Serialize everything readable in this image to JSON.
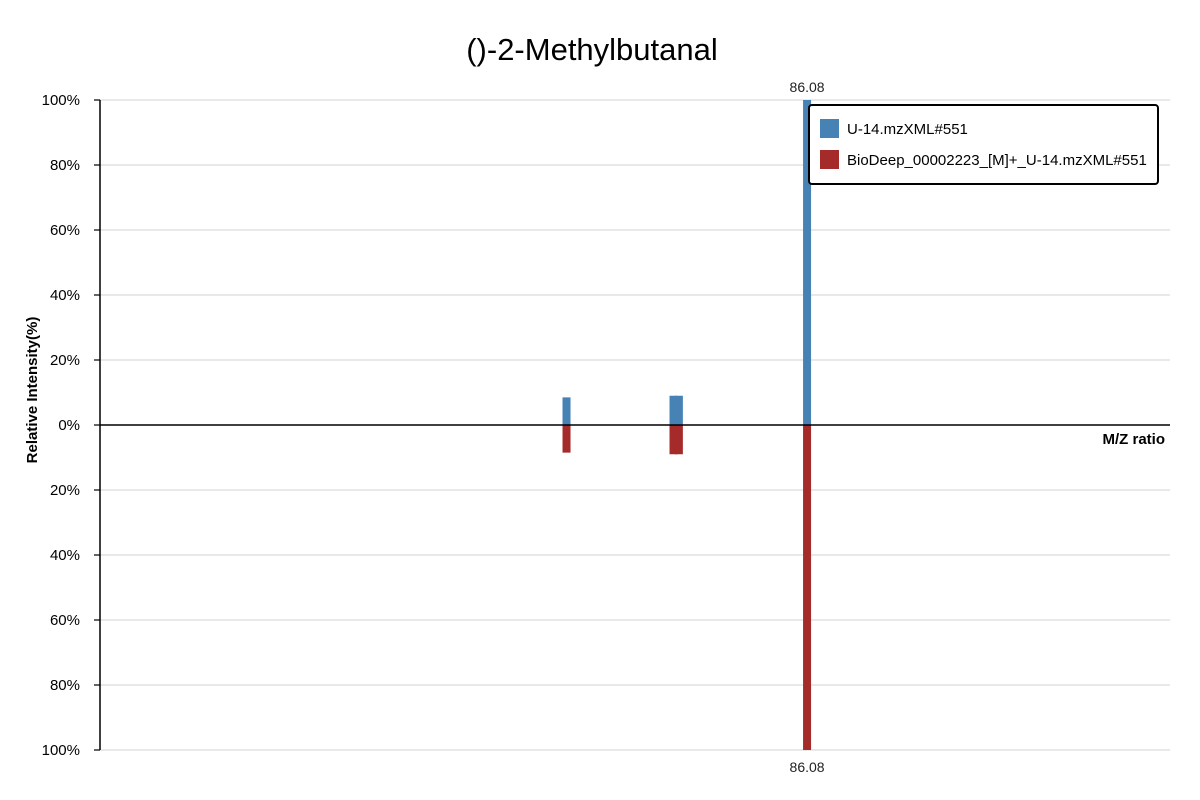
{
  "chart_data": {
    "type": "bar",
    "title": "()-2-Methylbutanal",
    "xlabel": "M/Z ratio",
    "ylabel": "Relative Intensity(%)",
    "ylim": [
      -100,
      100
    ],
    "xlim": [
      20,
      120
    ],
    "y_ticks": [
      "100%",
      "80%",
      "60%",
      "40%",
      "20%",
      "0%",
      "20%",
      "40%",
      "60%",
      "80%",
      "100%"
    ],
    "grid": true,
    "legend_position": "top-right",
    "series": [
      {
        "name": "U-14.mzXML#551",
        "color": "#4682b4",
        "direction": "up",
        "x": [
          63.6,
          73.6,
          74.1,
          86.08
        ],
        "values": [
          8.5,
          9.0,
          9.0,
          100
        ]
      },
      {
        "name": "BioDeep_00002223_[M]+_U-14.mzXML#551",
        "color": "#a52a2a",
        "direction": "down",
        "x": [
          63.6,
          73.6,
          74.1,
          86.08
        ],
        "values": [
          8.5,
          9.0,
          9.0,
          100
        ]
      }
    ],
    "annotations": [
      {
        "text": "86.08",
        "x": 86.08,
        "position": "top"
      },
      {
        "text": "86.08",
        "x": 86.08,
        "position": "bottom"
      }
    ]
  }
}
